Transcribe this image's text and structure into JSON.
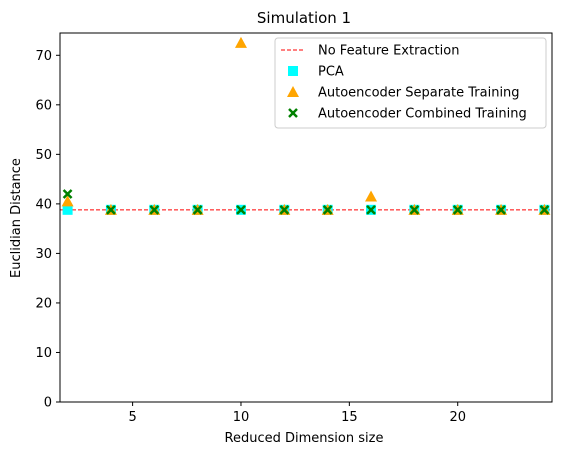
{
  "chart_data": {
    "type": "scatter",
    "title": "Simulation 1",
    "xlabel": "Reduced Dimension size",
    "ylabel": "Euclidian Distance",
    "xlim": [
      1.65,
      24.35
    ],
    "ylim": [
      0,
      74.5
    ],
    "xticks": [
      5,
      10,
      15,
      20
    ],
    "yticks": [
      0,
      10,
      20,
      30,
      40,
      50,
      60,
      70
    ],
    "grid": false,
    "legend_position": "top-right",
    "baseline": {
      "name": "No Feature Extraction",
      "y": 38.8,
      "color": "#ff0000",
      "style": "dashed"
    },
    "series": [
      {
        "name": "PCA",
        "marker": "square",
        "color": "#00ffff",
        "x": [
          2,
          4,
          6,
          8,
          10,
          12,
          14,
          16,
          18,
          20,
          22,
          24
        ],
        "y": [
          38.8,
          38.8,
          38.8,
          38.8,
          38.8,
          38.8,
          38.8,
          38.8,
          38.8,
          38.8,
          38.8,
          38.8
        ]
      },
      {
        "name": "Autoencoder Separate Training",
        "marker": "triangle",
        "color": "#ffa500",
        "x": [
          2,
          4,
          6,
          8,
          10,
          12,
          14,
          16,
          18,
          20,
          22,
          24
        ],
        "y": [
          40.5,
          38.8,
          38.8,
          38.8,
          72.5,
          38.8,
          38.8,
          41.5,
          38.8,
          38.8,
          38.8,
          38.8
        ]
      },
      {
        "name": "Autoencoder Combined Training",
        "marker": "x",
        "color": "#008000",
        "x": [
          2,
          4,
          6,
          8,
          10,
          12,
          14,
          16,
          18,
          20,
          22,
          24
        ],
        "y": [
          42.0,
          38.8,
          38.8,
          38.8,
          38.8,
          38.8,
          38.8,
          38.8,
          38.8,
          38.8,
          38.8,
          38.8
        ]
      }
    ]
  }
}
